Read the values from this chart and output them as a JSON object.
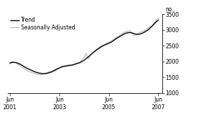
{
  "title": "",
  "ylabel": "no.",
  "ylim": [
    1000,
    3500
  ],
  "yticks": [
    1000,
    1500,
    2000,
    2500,
    3000,
    3500
  ],
  "legend_entries": [
    "Trend",
    "Seasonally Adjusted"
  ],
  "trend_color": "#000000",
  "sa_color": "#bbbbbb",
  "background_color": "#ffffff",
  "trend_data": [
    1950,
    1970,
    1970,
    1960,
    1940,
    1910,
    1870,
    1830,
    1790,
    1760,
    1730,
    1700,
    1670,
    1650,
    1630,
    1620,
    1610,
    1610,
    1620,
    1640,
    1660,
    1690,
    1720,
    1760,
    1790,
    1820,
    1840,
    1850,
    1860,
    1870,
    1880,
    1900,
    1920,
    1940,
    1970,
    2000,
    2040,
    2090,
    2140,
    2200,
    2260,
    2310,
    2360,
    2410,
    2450,
    2490,
    2520,
    2550,
    2580,
    2610,
    2650,
    2700,
    2740,
    2780,
    2820,
    2860,
    2890,
    2910,
    2920,
    2910,
    2890,
    2870,
    2860,
    2870,
    2890,
    2920,
    2960,
    3000,
    3060,
    3120,
    3190,
    3260,
    3310
  ],
  "sa_data": [
    1920,
    1990,
    1970,
    1950,
    1900,
    1860,
    1810,
    1770,
    1730,
    1690,
    1660,
    1640,
    1610,
    1600,
    1580,
    1580,
    1590,
    1620,
    1640,
    1670,
    1680,
    1720,
    1750,
    1780,
    1800,
    1840,
    1860,
    1860,
    1890,
    1910,
    1870,
    1890,
    1940,
    1960,
    1940,
    2060,
    2130,
    2260,
    2080,
    2180,
    2260,
    2330,
    2390,
    2430,
    2490,
    2510,
    2540,
    2580,
    2610,
    2630,
    2690,
    2720,
    2790,
    2810,
    2870,
    2900,
    2940,
    2960,
    2980,
    2930,
    2840,
    2830,
    2880,
    2920,
    2940,
    2970,
    3010,
    3060,
    3110,
    3130,
    3230,
    3310,
    3360
  ],
  "n_months": 73,
  "xtick_positions": [
    0,
    24,
    48,
    72
  ],
  "xtick_labels": [
    "Jun\n2001",
    "Jun\n2003",
    "Jun\n2005",
    "Jun\n2007"
  ]
}
